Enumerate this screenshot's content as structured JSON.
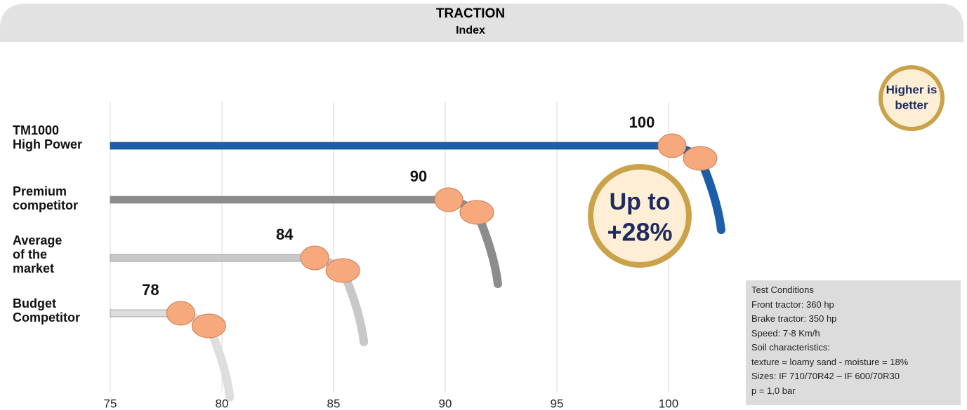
{
  "chart_data": {
    "type": "bar",
    "title": "TRACTION",
    "subtitle": "Index",
    "categories": [
      "TM1000\nHigh Power",
      "Premium\ncompetitor",
      "Average\nof the\nmarket",
      "Budget\nCompetitor"
    ],
    "values": [
      100,
      90,
      84,
      78
    ],
    "colors": [
      "#1d5ea8",
      "#8c8c8c",
      "#c8c8c8",
      "#dedede"
    ],
    "xlim": [
      75,
      100
    ],
    "xticks": [
      75,
      80,
      85,
      90,
      95,
      100
    ],
    "grid": true,
    "badge": "Higher is\nbetter",
    "annotation": [
      "Up to",
      "+28%"
    ],
    "test_conditions": [
      "Test Conditions",
      "Front tractor: 360 hp",
      "Brake tractor: 350 hp",
      "Speed: 7-8 Km/h",
      "Soil characteristics:",
      "texture = loamy sand - moisture = 18%",
      "Sizes: IF 710/70R42 – IF 600/70R30",
      "p = 1,0 bar"
    ]
  }
}
